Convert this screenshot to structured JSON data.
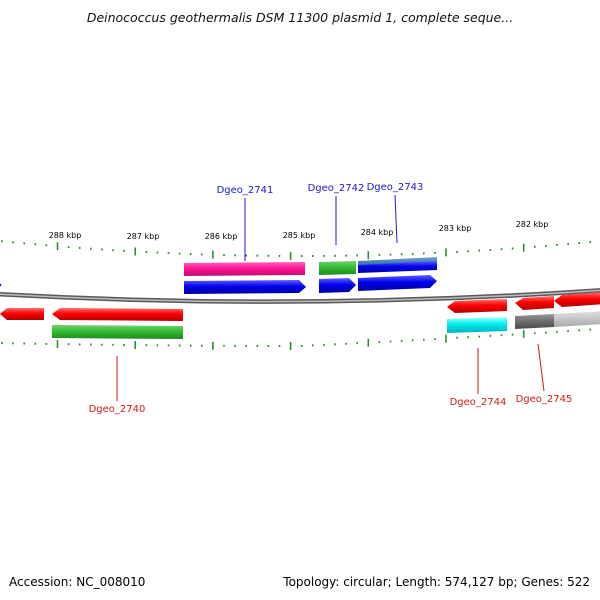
{
  "title": "Deinococcus geothermalis DSM 11300 plasmid 1, complete seque...",
  "footer": {
    "accession": "Accession: NC_008010",
    "summary": "Topology: circular; Length: 574,127 bp; Genes: 522"
  },
  "colors": {
    "backbone": "#8c8c8c",
    "tick": "#2f8f2f",
    "label_forward": "#1a1ad0",
    "label_reverse": "#d01a1a"
  },
  "scale_labels": [
    "288 kbp",
    "287 kbp",
    "286 kbp",
    "285 kbp",
    "284 kbp",
    "283 kbp",
    "282 kbp"
  ],
  "gene_labels": [
    {
      "text": "Dgeo_2740",
      "strand": "reverse"
    },
    {
      "text": "Dgeo_2741",
      "strand": "forward"
    },
    {
      "text": "Dgeo_2742",
      "strand": "forward"
    },
    {
      "text": "Dgeo_2743",
      "strand": "forward"
    },
    {
      "text": "Dgeo_2744",
      "strand": "reverse"
    },
    {
      "text": "Dgeo_2745",
      "strand": "reverse"
    }
  ]
}
